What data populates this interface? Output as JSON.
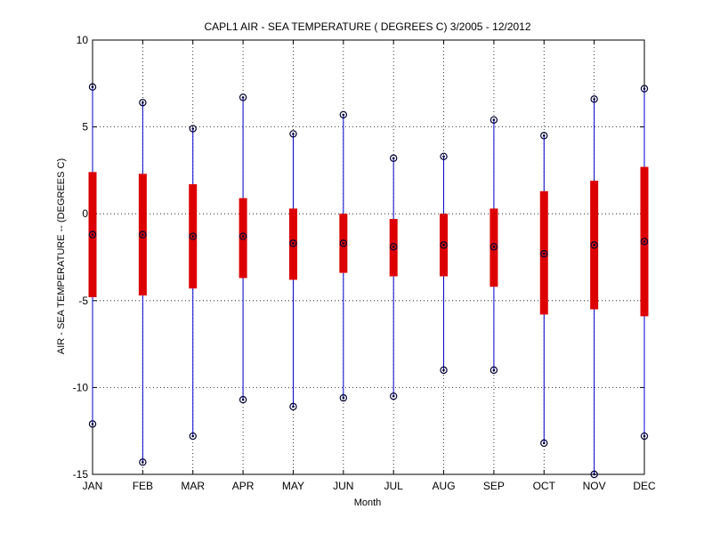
{
  "chart_data": {
    "type": "box",
    "title": "CAPL1  AIR - SEA TEMPERATURE ( DEGREES C) 3/2005 - 12/2012",
    "xlabel": "Month",
    "ylabel": "AIR - SEA TEMPERATURE -- (DEGREES C)",
    "ylim": [
      -15,
      10
    ],
    "yticks": [
      10,
      5,
      0,
      -5,
      -10,
      -15
    ],
    "grid": true,
    "categories": [
      "JAN",
      "FEB",
      "MAR",
      "APR",
      "MAY",
      "JUN",
      "JUL",
      "AUG",
      "SEP",
      "OCT",
      "NOV",
      "DEC"
    ],
    "series": [
      {
        "max": [
          7.3,
          6.4,
          4.9,
          6.7,
          4.6,
          5.7,
          3.2,
          3.3,
          5.4,
          4.5,
          6.6,
          7.2
        ],
        "q3": [
          2.4,
          2.3,
          1.7,
          0.9,
          0.3,
          0.0,
          -0.3,
          0.0,
          0.3,
          1.3,
          1.9,
          2.7
        ],
        "median": [
          -1.2,
          -1.2,
          -1.3,
          -1.3,
          -1.7,
          -1.7,
          -1.9,
          -1.8,
          -1.9,
          -2.3,
          -1.8,
          -1.6
        ],
        "q1": [
          -4.8,
          -4.7,
          -4.3,
          -3.7,
          -3.8,
          -3.4,
          -3.6,
          -3.6,
          -4.2,
          -5.8,
          -5.5,
          -5.9
        ],
        "min": [
          -12.1,
          -14.3,
          -12.8,
          -10.7,
          -11.1,
          -10.6,
          -10.5,
          -9.0,
          -9.0,
          -13.2,
          -15.0,
          -12.8
        ]
      }
    ],
    "colors": {
      "whisker": "#0000cc",
      "box": "#dd0000",
      "grid": "#000000"
    }
  }
}
